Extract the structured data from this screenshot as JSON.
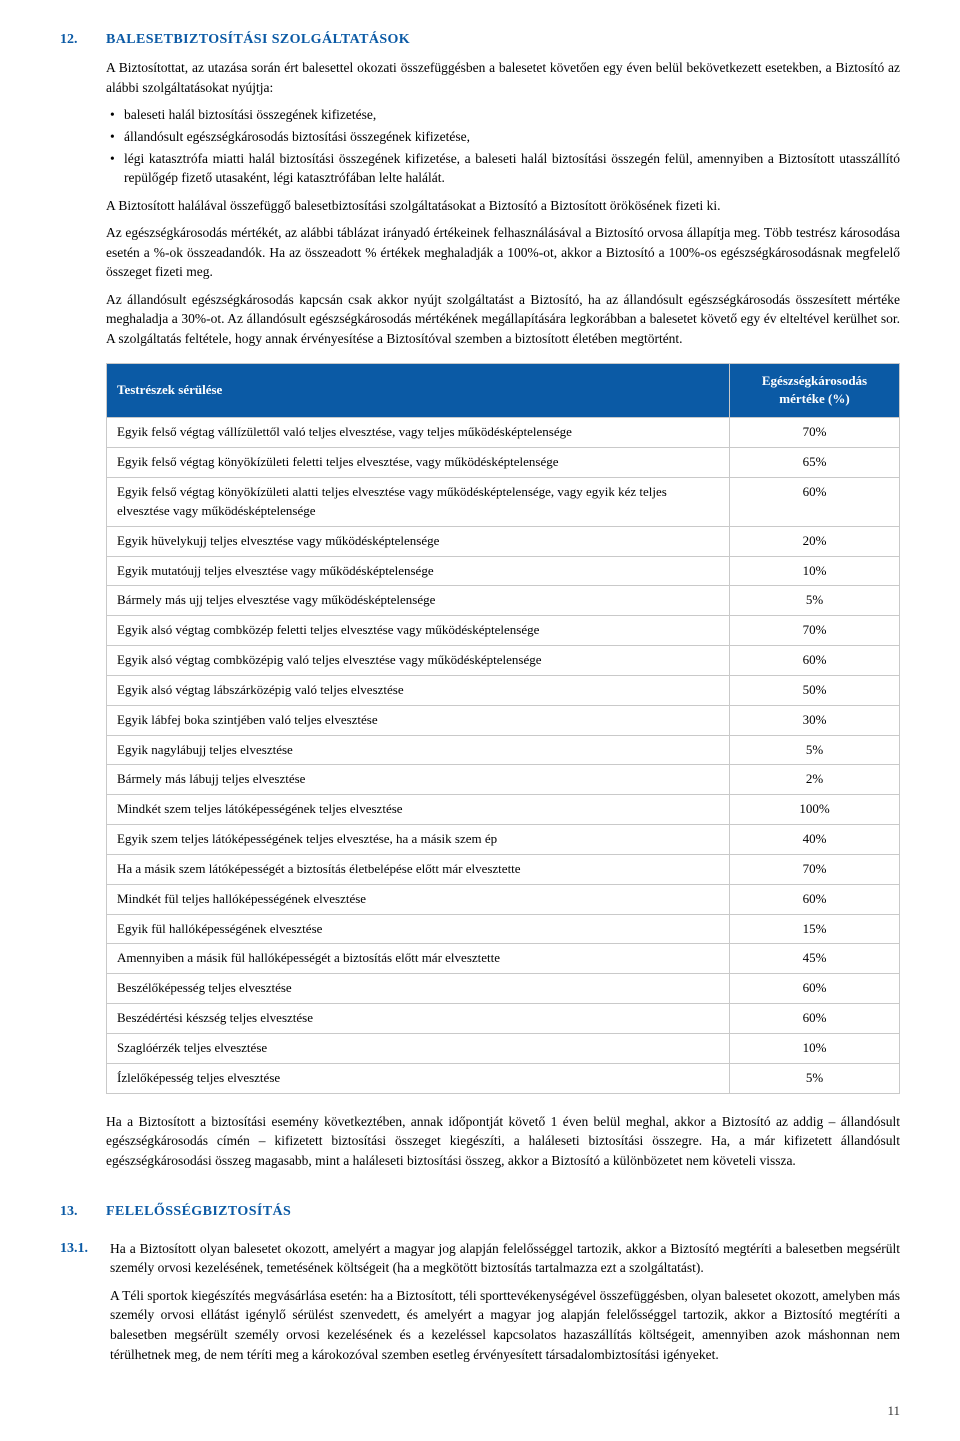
{
  "colors": {
    "accent": "#0b5aa5",
    "border": "#c9c9c9",
    "text": "#000000",
    "bg": "#ffffff"
  },
  "section12": {
    "num": "12.",
    "title": "BALESETBIZTOSÍTÁSI SZOLGÁLTATÁSOK",
    "intro": "A Biztosítottat, az utazása során ért balesettel okozati összefüggésben a balesetet követően egy éven belül bekövetkezett esetekben, a Biztosító az alábbi szolgáltatásokat nyújtja:",
    "bullets": [
      "baleseti halál biztosítási összegének kifizetése,",
      "állandósult egészségkárosodás biztosítási összegének kifizetése,",
      "légi katasztrófa miatti halál biztosítási összegének kifizetése, a baleseti halál biztosítási összegén felül, amennyiben a Biztosított utasszállító repülőgép fizető utasaként, légi katasztrófában lelte halálát."
    ],
    "p1": "A Biztosított halálával összefüggő balesetbiztosítási szolgáltatásokat a Biztosító a Biztosított örökösének fizeti ki.",
    "p2": "Az egészségkárosodás mértékét, az alábbi táblázat irányadó értékeinek felhasználásával a Biztosító orvosa állapítja meg. Több testrész károsodása esetén a %-ok összeadandók. Ha az összeadott % értékek meghaladják a 100%-ot, akkor a Biztosító a 100%-os egészségkárosodásnak megfelelő összeget fizeti meg.",
    "p3": "Az állandósult egészségkárosodás kapcsán csak akkor nyújt szolgáltatást a Biztosító, ha az állandósult egészségkárosodás összesített mértéke meghaladja a 30%-ot. Az állandósult egészségkárosodás mértékének megállapítására legkorábban a balesetet követő egy év elteltével kerülhet sor. A szolgáltatás feltétele, hogy annak érvényesítése a Biztosítóval szemben a biztosított életében megtörtént.",
    "after_table": "Ha a Biztosított a biztosítási esemény következtében, annak időpontját követő 1 éven belül meghal, akkor a Biztosító az addig – állandósult egészségkárosodás címén – kifizetett biztosítási összeget kiegészíti, a haláleseti biztosítási összegre. Ha, a már kifizetett állandósult egészségkárosodási összeg magasabb, mint a haláleseti biztosítási összeg, akkor a Biztosító a különbözetet nem követeli vissza."
  },
  "table": {
    "header_left": "Testrészek sérülése",
    "header_right_l1": "Egészségkárosodás",
    "header_right_l2": "mértéke (%)",
    "rows": [
      {
        "label": "Egyik felső végtag vállízülettől való teljes elvesztése, vagy teljes működésképtelensége",
        "pct": "70%"
      },
      {
        "label": "Egyik felső végtag könyökízületi feletti teljes elvesztése, vagy működésképtelensége",
        "pct": "65%"
      },
      {
        "label": "Egyik felső végtag könyökízületi alatti teljes elvesztése vagy működésképtelensége, vagy egyik kéz teljes elvesztése vagy működésképtelensége",
        "pct": "60%"
      },
      {
        "label": "Egyik hüvelykujj teljes elvesztése vagy működésképtelensége",
        "pct": "20%"
      },
      {
        "label": "Egyik mutatóujj teljes elvesztése vagy működésképtelensége",
        "pct": "10%"
      },
      {
        "label": "Bármely más ujj teljes elvesztése vagy működésképtelensége",
        "pct": "5%"
      },
      {
        "label": "Egyik alsó végtag combközép feletti teljes elvesztése vagy működésképtelensége",
        "pct": "70%"
      },
      {
        "label": "Egyik alsó végtag combközépig való teljes elvesztése vagy működésképtelensége",
        "pct": "60%"
      },
      {
        "label": "Egyik alsó végtag lábszárközépig való teljes elvesztése",
        "pct": "50%"
      },
      {
        "label": "Egyik lábfej boka szintjében való teljes elvesztése",
        "pct": "30%"
      },
      {
        "label": "Egyik nagylábujj teljes elvesztése",
        "pct": "5%"
      },
      {
        "label": "Bármely más lábujj teljes elvesztése",
        "pct": "2%"
      },
      {
        "label": "Mindkét szem teljes látóképességének teljes elvesztése",
        "pct": "100%"
      },
      {
        "label": "Egyik szem teljes látóképességének teljes elvesztése, ha a másik szem ép",
        "pct": "40%"
      },
      {
        "label": "Ha a másik szem látóképességét a biztosítás életbelépése előtt már elvesztette",
        "pct": "70%"
      },
      {
        "label": "Mindkét fül teljes hallóképességének elvesztése",
        "pct": "60%"
      },
      {
        "label": "Egyik fül hallóképességének elvesztése",
        "pct": "15%"
      },
      {
        "label": "Amennyiben a másik fül hallóképességét a biztosítás előtt már elvesztette",
        "pct": "45%"
      },
      {
        "label": "Beszélőképesség teljes elvesztése",
        "pct": "60%"
      },
      {
        "label": "Beszédértési készség teljes elvesztése",
        "pct": "60%"
      },
      {
        "label": "Szaglóérzék teljes elvesztése",
        "pct": "10%"
      },
      {
        "label": "Ízlelőképesség teljes elvesztése",
        "pct": "5%"
      }
    ]
  },
  "section13": {
    "num": "13.",
    "title": "FELELŐSSÉGBIZTOSÍTÁS",
    "sub_num": "13.1.",
    "p1": "Ha a Biztosított olyan balesetet okozott, amelyért a magyar jog alapján felelősséggel tartozik, akkor a Biztosító megtéríti a balesetben megsérült személy orvosi kezelésének, temetésének költségeit (ha a megkötött biztosítás tartalmazza ezt a szolgáltatást).",
    "p2": "A Téli sportok kiegészítés megvásárlása esetén: ha a Biztosított, téli sporttevékenységével összefüggésben, olyan balesetet okozott, amelyben más személy orvosi ellátást igénylő sérülést szenvedett, és amelyért a magyar jog alapján felelősséggel tartozik, akkor a Biztosító megtéríti a balesetben megsérült személy orvosi kezelésének és a kezeléssel kapcsolatos hazaszállítás költségeit, amennyiben azok máshonnan nem térülhetnek meg, de nem téríti meg a károkozóval szemben esetleg érvényesített társadalombiztosítási igényeket."
  },
  "page_number": "11"
}
